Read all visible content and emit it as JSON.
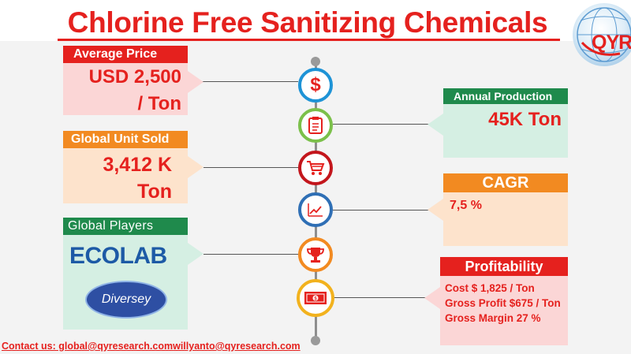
{
  "title": "Chlorine Free Sanitizing Chemicals",
  "logo": {
    "text": "QYR"
  },
  "panels": {
    "average_price": {
      "header": "Average Price",
      "line1": "USD 2,500",
      "line2": "/ Ton"
    },
    "global_unit_sold": {
      "header": "Global Unit Sold",
      "line1": "3,412 K",
      "line2": "Ton"
    },
    "global_players": {
      "header": "Global Players",
      "player1": "ECOLAB",
      "player2": "Diversey"
    },
    "annual_production": {
      "header": "Annual Production",
      "value": "45K Ton"
    },
    "cagr": {
      "header": "CAGR",
      "value": "7,5 %"
    },
    "profitability": {
      "header": "Profitability",
      "cost": "Cost $ 1,825 / Ton",
      "gross_profit": "Gross Profit $675 / Ton",
      "gross_margin": "Gross Margin 27 %"
    }
  },
  "icons": [
    "dollar-icon",
    "clipboard-icon",
    "cart-icon",
    "chart-icon",
    "trophy-icon",
    "cash-icon"
  ],
  "footer": {
    "label": "Contact us: global@qyresearch.com",
    "email2": "willyanto@qyresearch.com"
  },
  "colors": {
    "title_red": "#e5211e",
    "header_red": "#e5211e",
    "header_orange": "#f28a21",
    "header_green": "#1f8a4c",
    "panel_pink": "#fbd6d6",
    "panel_peach": "#fde3cc",
    "panel_mint": "#d5efe3"
  }
}
